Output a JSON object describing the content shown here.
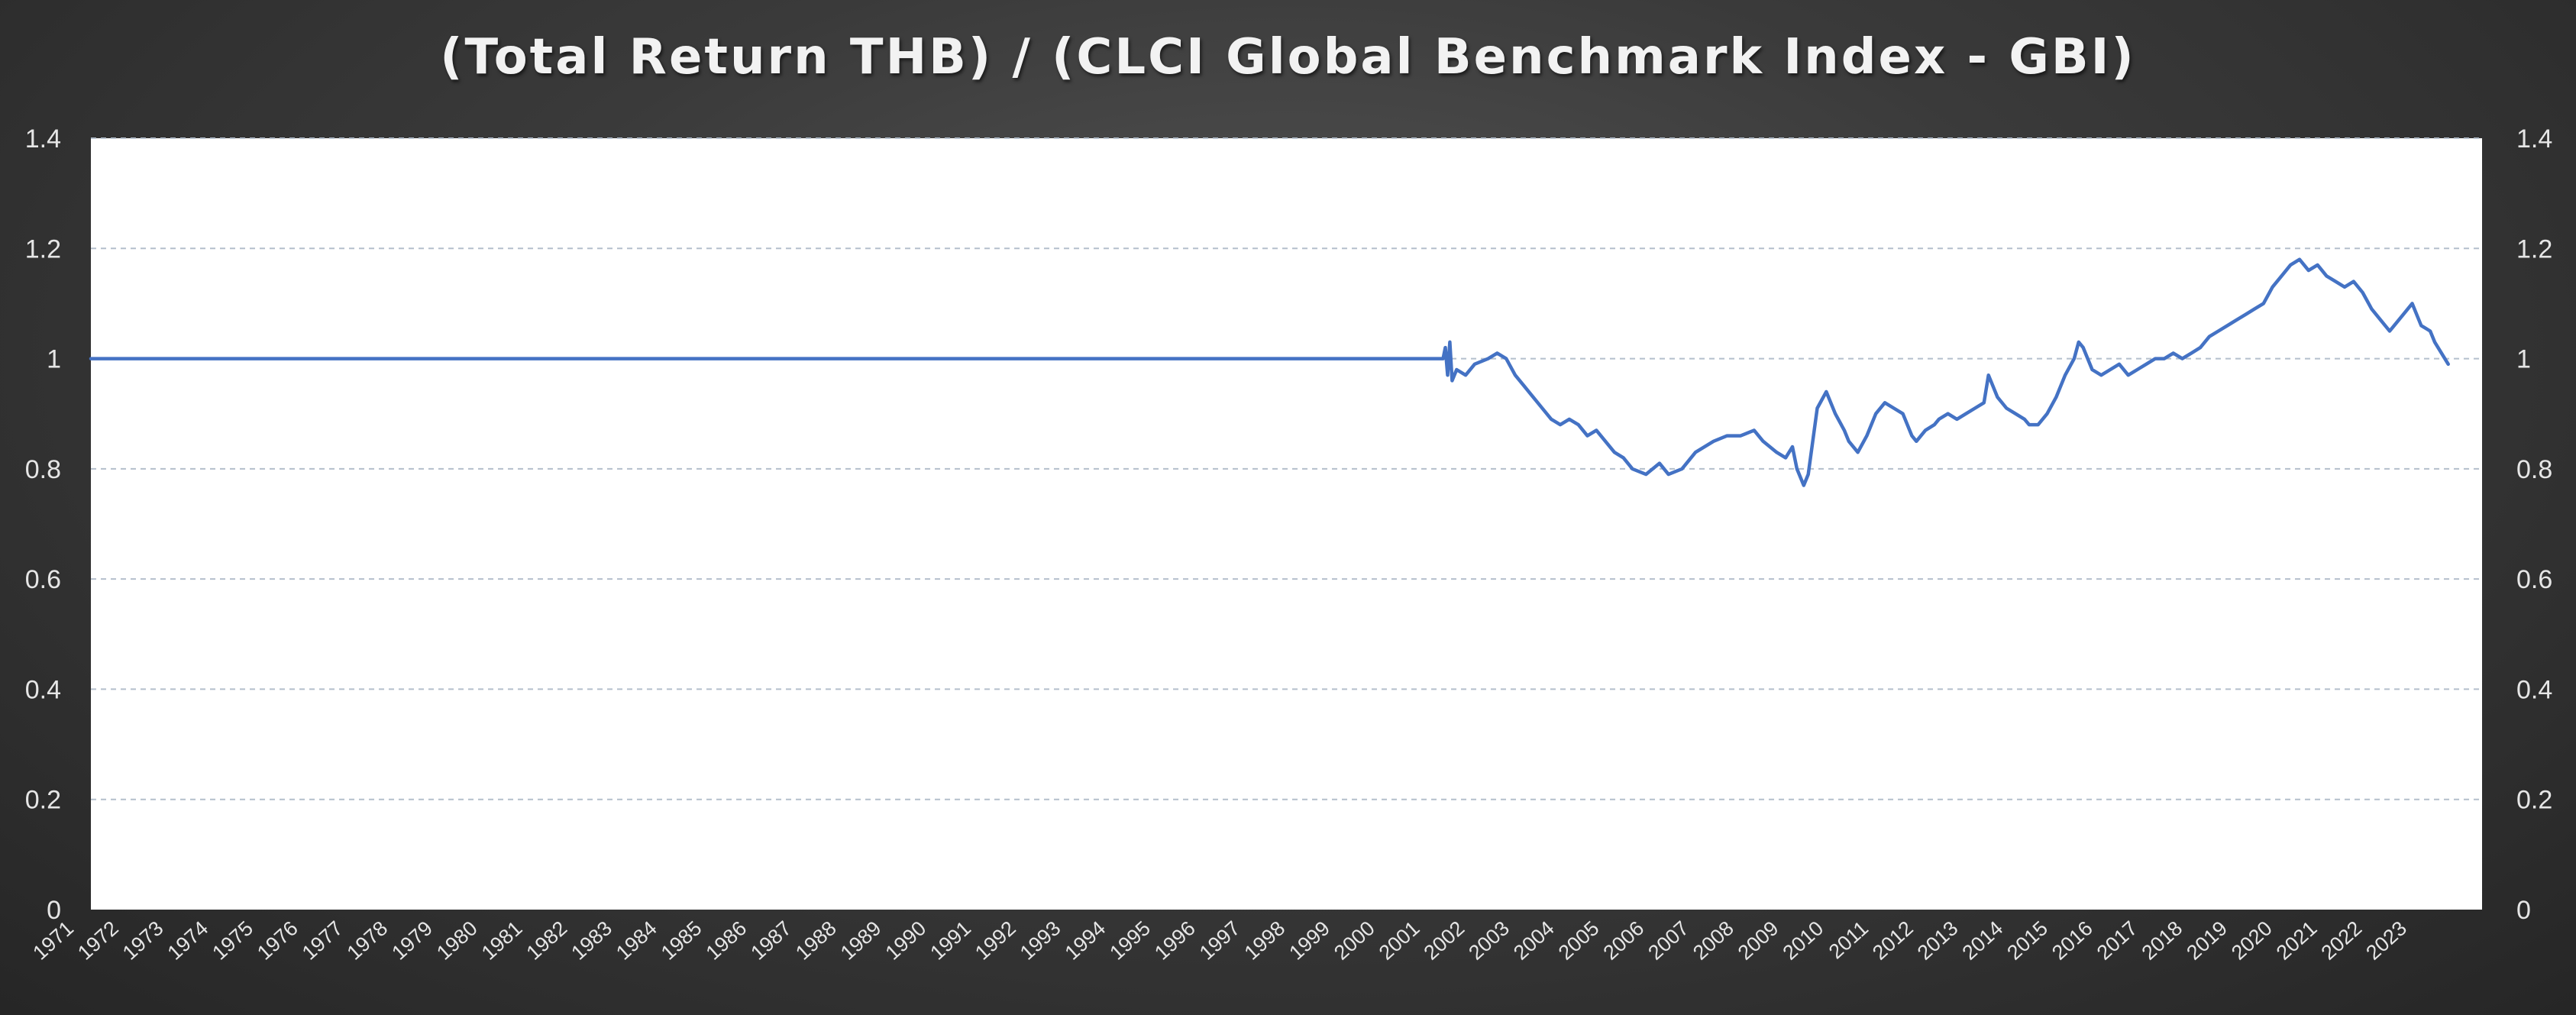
{
  "chart_data": {
    "type": "line",
    "title": "(Total Return THB) / (CLCI Global Benchmark Index - GBI)",
    "xlabel": "",
    "ylabel": "",
    "ylim": [
      0,
      1.4
    ],
    "yticks": [
      "0",
      "0.2",
      "0.4",
      "0.6",
      "0.8",
      "1",
      "1.2",
      "1.4"
    ],
    "secondary_y_axis": true,
    "grid": "horizontal dashed",
    "legend": "none",
    "line_color": "#4472C4",
    "x_tick_labels": [
      "1971",
      "1972",
      "1973",
      "1974",
      "1975",
      "1976",
      "1977",
      "1978",
      "1979",
      "1980",
      "1981",
      "1982",
      "1983",
      "1984",
      "1985",
      "1986",
      "1987",
      "1988",
      "1989",
      "1990",
      "1991",
      "1992",
      "1993",
      "1994",
      "1995",
      "1996",
      "1997",
      "1998",
      "1999",
      "2000",
      "2001",
      "2002",
      "2003",
      "2004",
      "2005",
      "2006",
      "2007",
      "2008",
      "2009",
      "2010",
      "2011",
      "2012",
      "2013",
      "2014",
      "2015",
      "2016",
      "2017",
      "2018",
      "2019",
      "2020",
      "2021",
      "2022",
      "2023"
    ],
    "series": [
      {
        "x": [
          1971.0,
          2001.0,
          2001.05,
          2001.1,
          2001.15,
          2001.2,
          2001.3,
          2001.5,
          2001.7,
          2002.0,
          2002.2,
          2002.4,
          2002.6,
          2002.8,
          2003.0,
          2003.2,
          2003.4,
          2003.6,
          2003.8,
          2004.0,
          2004.2,
          2004.4,
          2004.6,
          2004.8,
          2005.0,
          2005.2,
          2005.5,
          2005.8,
          2006.0,
          2006.3,
          2006.6,
          2007.0,
          2007.3,
          2007.6,
          2007.9,
          2008.1,
          2008.4,
          2008.6,
          2008.75,
          2008.85,
          2009.0,
          2009.1,
          2009.3,
          2009.5,
          2009.7,
          2009.9,
          2010.0,
          2010.2,
          2010.4,
          2010.6,
          2010.8,
          2011.0,
          2011.2,
          2011.4,
          2011.5,
          2011.7,
          2011.9,
          2012.0,
          2012.2,
          2012.4,
          2012.6,
          2012.8,
          2013.0,
          2013.1,
          2013.3,
          2013.5,
          2013.7,
          2013.9,
          2014.0,
          2014.2,
          2014.4,
          2014.6,
          2014.8,
          2015.0,
          2015.1,
          2015.2,
          2015.4,
          2015.6,
          2015.8,
          2016.0,
          2016.2,
          2016.4,
          2016.6,
          2016.8,
          2017.0,
          2017.2,
          2017.4,
          2017.6,
          2017.8,
          2018.0,
          2018.2,
          2018.4,
          2018.6,
          2018.8,
          2019.0,
          2019.2,
          2019.4,
          2019.6,
          2019.8,
          2020.0,
          2020.2,
          2020.4,
          2020.6,
          2020.8,
          2021.0,
          2021.2,
          2021.4,
          2021.6,
          2021.8,
          2022.0,
          2022.1,
          2022.3,
          2022.5,
          2022.7,
          2022.9,
          2023.0,
          2023.15,
          2023.3
        ],
        "values": [
          1.0,
          1.0,
          1.02,
          0.97,
          1.03,
          0.96,
          0.98,
          0.97,
          0.99,
          1.0,
          1.01,
          1.0,
          0.97,
          0.95,
          0.93,
          0.91,
          0.89,
          0.88,
          0.89,
          0.88,
          0.86,
          0.87,
          0.85,
          0.83,
          0.82,
          0.8,
          0.79,
          0.81,
          0.79,
          0.8,
          0.83,
          0.85,
          0.86,
          0.86,
          0.87,
          0.85,
          0.83,
          0.82,
          0.84,
          0.8,
          0.77,
          0.79,
          0.91,
          0.94,
          0.9,
          0.87,
          0.85,
          0.83,
          0.86,
          0.9,
          0.92,
          0.91,
          0.9,
          0.86,
          0.85,
          0.87,
          0.88,
          0.89,
          0.9,
          0.89,
          0.9,
          0.91,
          0.92,
          0.97,
          0.93,
          0.91,
          0.9,
          0.89,
          0.88,
          0.88,
          0.9,
          0.93,
          0.97,
          1.0,
          1.03,
          1.02,
          0.98,
          0.97,
          0.98,
          0.99,
          0.97,
          0.98,
          0.99,
          1.0,
          1.0,
          1.01,
          1.0,
          1.01,
          1.02,
          1.04,
          1.05,
          1.06,
          1.07,
          1.08,
          1.09,
          1.1,
          1.13,
          1.15,
          1.17,
          1.18,
          1.16,
          1.17,
          1.15,
          1.14,
          1.13,
          1.14,
          1.12,
          1.09,
          1.07,
          1.05,
          1.06,
          1.08,
          1.1,
          1.06,
          1.05,
          1.03,
          1.01,
          0.99
        ]
      }
    ]
  }
}
